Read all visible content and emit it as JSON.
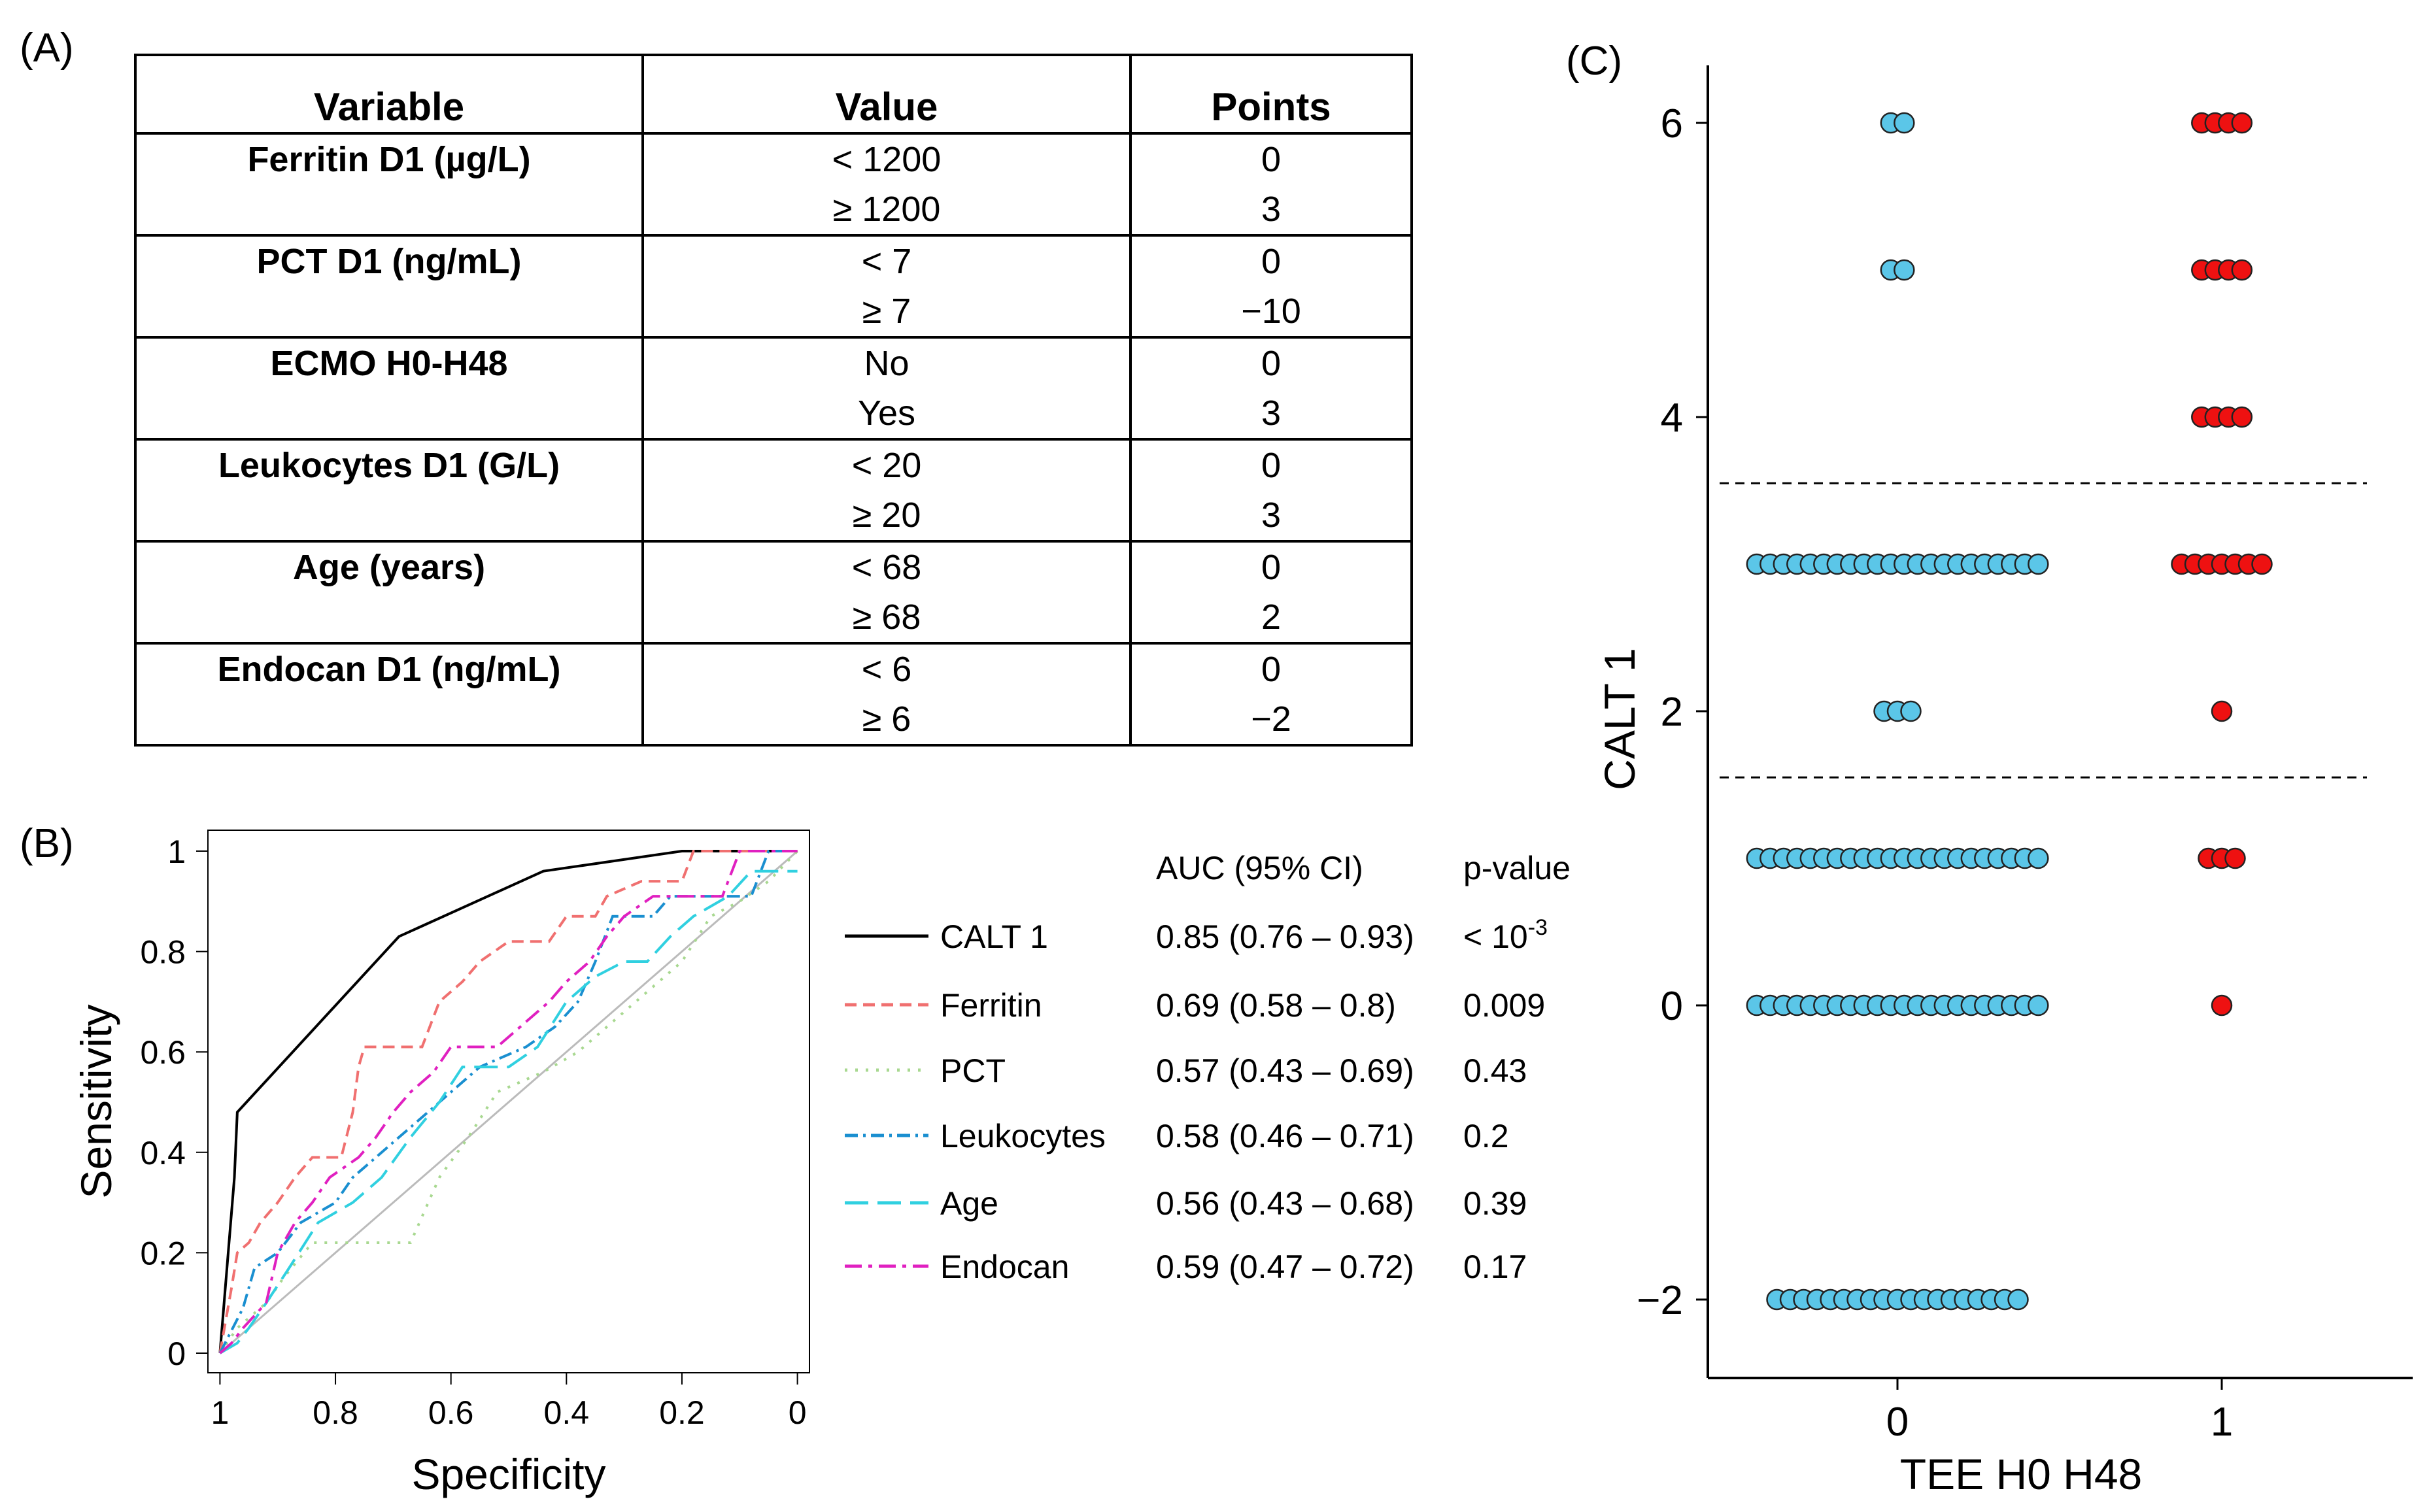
{
  "panel_labels": {
    "a": "(A)",
    "b": "(B)",
    "c": "(C)"
  },
  "table": {
    "headers": {
      "variable": "Variable",
      "value": "Value",
      "points": "Points"
    },
    "rows": [
      {
        "variable": "Ferritin D1 (µg/L)",
        "levels": [
          {
            "value": "< 1200",
            "points": "0"
          },
          {
            "value": "≥ 1200",
            "points": "3"
          }
        ]
      },
      {
        "variable": "PCT D1 (ng/mL)",
        "levels": [
          {
            "value": "< 7",
            "points": "0"
          },
          {
            "value": "≥ 7",
            "points": "−10"
          }
        ]
      },
      {
        "variable": "ECMO H0-H48",
        "levels": [
          {
            "value": "No",
            "points": "0"
          },
          {
            "value": "Yes",
            "points": "3"
          }
        ]
      },
      {
        "variable": "Leukocytes D1 (G/L)",
        "levels": [
          {
            "value": "< 20",
            "points": "0"
          },
          {
            "value": "≥ 20",
            "points": "3"
          }
        ]
      },
      {
        "variable": "Age (years)",
        "levels": [
          {
            "value": "< 68",
            "points": "0"
          },
          {
            "value": "≥ 68",
            "points": "2"
          }
        ]
      },
      {
        "variable": "Endocan D1 (ng/mL)",
        "levels": [
          {
            "value": "< 6",
            "points": "0"
          },
          {
            "value": "≥ 6",
            "points": "−2"
          }
        ]
      }
    ]
  },
  "colors": {
    "cyan": "#5bc6e8",
    "red": "#ee1111",
    "ferritin": "#f07070",
    "pct": "#a8d890",
    "leukocytes": "#1a8fd0",
    "age": "#30d0e0",
    "endocan": "#e020c0",
    "calt": "#000000"
  },
  "chart_data": [
    {
      "type": "line",
      "title": "",
      "xlabel": "Specificity",
      "ylabel": "Sensitivity",
      "x_reversed": true,
      "xlim": [
        1,
        0
      ],
      "ylim": [
        0,
        1
      ],
      "x_ticks": [
        "1",
        "0.8",
        "0.6",
        "0.4",
        "0.2",
        "0"
      ],
      "y_ticks": [
        "0",
        "0.2",
        "0.4",
        "0.6",
        "0.8",
        "1"
      ],
      "legend_header": {
        "auc": "AUC (95% CI)",
        "p": "p-value"
      },
      "series": [
        {
          "name": "CALT 1",
          "style": "solid",
          "color": "#000000",
          "auc": "0.85 (0.76 – 0.93)",
          "p_base": "< 10",
          "p_exp": "-3",
          "points": [
            [
              1,
              0
            ],
            [
              0.975,
              0.35
            ],
            [
              0.97,
              0.48
            ],
            [
              0.69,
              0.83
            ],
            [
              0.44,
              0.96
            ],
            [
              0.2,
              1
            ],
            [
              0,
              1
            ]
          ]
        },
        {
          "name": "Ferritin",
          "style": "dashed",
          "color": "#f07070",
          "auc": "0.69 (0.58 – 0.8)",
          "p": "0.009",
          "points": [
            [
              1,
              0
            ],
            [
              0.98,
              0.13
            ],
            [
              0.97,
              0.2
            ],
            [
              0.95,
              0.22
            ],
            [
              0.93,
              0.26
            ],
            [
              0.9,
              0.3
            ],
            [
              0.87,
              0.35
            ],
            [
              0.84,
              0.39
            ],
            [
              0.79,
              0.39
            ],
            [
              0.77,
              0.48
            ],
            [
              0.76,
              0.57
            ],
            [
              0.75,
              0.61
            ],
            [
              0.65,
              0.61
            ],
            [
              0.62,
              0.7
            ],
            [
              0.58,
              0.74
            ],
            [
              0.55,
              0.78
            ],
            [
              0.5,
              0.82
            ],
            [
              0.43,
              0.82
            ],
            [
              0.4,
              0.87
            ],
            [
              0.35,
              0.87
            ],
            [
              0.33,
              0.91
            ],
            [
              0.27,
              0.94
            ],
            [
              0.2,
              0.94
            ],
            [
              0.18,
              1
            ],
            [
              0,
              1
            ]
          ]
        },
        {
          "name": "PCT",
          "style": "dotted",
          "color": "#a8d890",
          "auc": "0.57 (0.43 – 0.69)",
          "p": "0.43",
          "points": [
            [
              1,
              0
            ],
            [
              0.97,
              0.05
            ],
            [
              0.92,
              0.1
            ],
            [
              0.89,
              0.15
            ],
            [
              0.84,
              0.22
            ],
            [
              0.76,
              0.22
            ],
            [
              0.67,
              0.22
            ],
            [
              0.62,
              0.35
            ],
            [
              0.57,
              0.43
            ],
            [
              0.52,
              0.52
            ],
            [
              0.44,
              0.56
            ],
            [
              0.38,
              0.6
            ],
            [
              0.28,
              0.7
            ],
            [
              0.2,
              0.78
            ],
            [
              0.15,
              0.87
            ],
            [
              0.1,
              0.9
            ],
            [
              0.05,
              0.94
            ],
            [
              0,
              1
            ]
          ]
        },
        {
          "name": "Leukocytes",
          "style": "dashdot",
          "color": "#1a8fd0",
          "auc": "0.58 (0.46 – 0.71)",
          "p": "0.2",
          "points": [
            [
              1,
              0
            ],
            [
              0.96,
              0.09
            ],
            [
              0.94,
              0.17
            ],
            [
              0.9,
              0.2
            ],
            [
              0.86,
              0.26
            ],
            [
              0.8,
              0.3
            ],
            [
              0.77,
              0.35
            ],
            [
              0.73,
              0.39
            ],
            [
              0.69,
              0.43
            ],
            [
              0.64,
              0.48
            ],
            [
              0.6,
              0.52
            ],
            [
              0.55,
              0.57
            ],
            [
              0.47,
              0.61
            ],
            [
              0.42,
              0.65
            ],
            [
              0.38,
              0.7
            ],
            [
              0.35,
              0.78
            ],
            [
              0.32,
              0.87
            ],
            [
              0.3,
              0.87
            ],
            [
              0.25,
              0.87
            ],
            [
              0.22,
              0.91
            ],
            [
              0.08,
              0.91
            ],
            [
              0.05,
              1
            ],
            [
              0,
              1
            ]
          ]
        },
        {
          "name": "Age",
          "style": "longdash",
          "color": "#30d0e0",
          "auc": "0.56 (0.43 – 0.68)",
          "p": "0.39",
          "points": [
            [
              1,
              0
            ],
            [
              0.97,
              0.02
            ],
            [
              0.95,
              0.05
            ],
            [
              0.92,
              0.1
            ],
            [
              0.88,
              0.17
            ],
            [
              0.83,
              0.26
            ],
            [
              0.77,
              0.3
            ],
            [
              0.72,
              0.35
            ],
            [
              0.67,
              0.43
            ],
            [
              0.62,
              0.5
            ],
            [
              0.58,
              0.57
            ],
            [
              0.5,
              0.57
            ],
            [
              0.45,
              0.61
            ],
            [
              0.4,
              0.7
            ],
            [
              0.35,
              0.75
            ],
            [
              0.3,
              0.78
            ],
            [
              0.26,
              0.78
            ],
            [
              0.22,
              0.83
            ],
            [
              0.18,
              0.87
            ],
            [
              0.12,
              0.91
            ],
            [
              0.08,
              0.96
            ],
            [
              0,
              0.96
            ]
          ]
        },
        {
          "name": "Endocan",
          "style": "dashdotline",
          "color": "#e020c0",
          "auc": "0.59 (0.47 – 0.72)",
          "p": "0.17",
          "points": [
            [
              1,
              0
            ],
            [
              0.98,
              0.02
            ],
            [
              0.96,
              0.05
            ],
            [
              0.92,
              0.1
            ],
            [
              0.9,
              0.2
            ],
            [
              0.87,
              0.26
            ],
            [
              0.84,
              0.3
            ],
            [
              0.81,
              0.35
            ],
            [
              0.76,
              0.39
            ],
            [
              0.73,
              0.43
            ],
            [
              0.7,
              0.48
            ],
            [
              0.67,
              0.52
            ],
            [
              0.63,
              0.56
            ],
            [
              0.6,
              0.61
            ],
            [
              0.52,
              0.61
            ],
            [
              0.48,
              0.65
            ],
            [
              0.43,
              0.7
            ],
            [
              0.4,
              0.74
            ],
            [
              0.36,
              0.78
            ],
            [
              0.33,
              0.83
            ],
            [
              0.3,
              0.87
            ],
            [
              0.25,
              0.91
            ],
            [
              0.13,
              0.91
            ],
            [
              0.1,
              1
            ],
            [
              0,
              1
            ]
          ]
        }
      ]
    },
    {
      "type": "scatter",
      "title": "",
      "xlabel": "TEE H0 H48",
      "ylabel": "CALT 1",
      "x_categories": [
        "0",
        "1"
      ],
      "y_ticks": [
        "−2",
        "0",
        "2",
        "4",
        "6"
      ],
      "ylim": [
        -2.5,
        6.4
      ],
      "thresholds": [
        1.55,
        3.55
      ],
      "groups": [
        {
          "category": "0",
          "color": "#5bc6e8",
          "counts": [
            {
              "y": 6,
              "n": 2
            },
            {
              "y": 5,
              "n": 2
            },
            {
              "y": 3,
              "n": 22
            },
            {
              "y": 2,
              "n": 3
            },
            {
              "y": 1,
              "n": 22
            },
            {
              "y": 0,
              "n": 22
            },
            {
              "y": -2,
              "n": 19
            }
          ]
        },
        {
          "category": "1",
          "color": "#ee1111",
          "counts": [
            {
              "y": 6,
              "n": 4
            },
            {
              "y": 5,
              "n": 4
            },
            {
              "y": 4,
              "n": 4
            },
            {
              "y": 3,
              "n": 7
            },
            {
              "y": 2,
              "n": 1
            },
            {
              "y": 1,
              "n": 3
            },
            {
              "y": 0,
              "n": 1
            }
          ]
        }
      ]
    }
  ]
}
